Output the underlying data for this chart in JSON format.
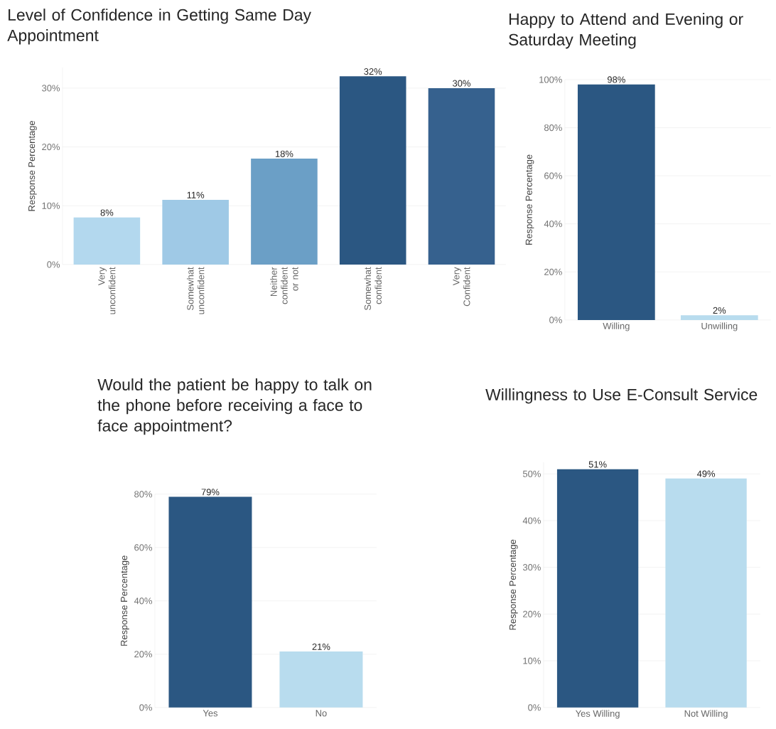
{
  "chart_data": [
    {
      "type": "bar",
      "title": "Level of Confidence in  Getting Same Day Appointment",
      "ylabel": "Response Percentage",
      "categories": [
        "Very unconfident",
        "Somewhat unconfident",
        "Neither confident or not",
        "Somewhat confident",
        "Very Confident"
      ],
      "values": [
        8,
        11,
        18,
        32,
        30
      ],
      "value_labels": [
        "8%",
        "11%",
        "18%",
        "32%",
        "30%"
      ],
      "colors": [
        "#b3d8ee",
        "#9fc9e6",
        "#6b9fc6",
        "#2b5782",
        "#36618e"
      ],
      "ylim": [
        0,
        33.5
      ],
      "yticks": [
        {
          "value": 0,
          "label": "0%"
        },
        {
          "value": 10,
          "label": "10%"
        },
        {
          "value": 20,
          "label": "20%"
        },
        {
          "value": 30,
          "label": "30%"
        }
      ],
      "grid": "y"
    },
    {
      "type": "bar",
      "title": "Happy to Attend and Evening or Saturday Meeting",
      "ylabel": "Response Percentage",
      "categories": [
        "Willing",
        "Unwilling"
      ],
      "values": [
        98,
        2
      ],
      "value_labels": [
        "98%",
        "2%"
      ],
      "colors": [
        "#2b5782",
        "#b8dcee"
      ],
      "ylim": [
        0,
        100
      ],
      "yticks": [
        {
          "value": 0,
          "label": "0%"
        },
        {
          "value": 20,
          "label": "20%"
        },
        {
          "value": 40,
          "label": "40%"
        },
        {
          "value": 60,
          "label": "60%"
        },
        {
          "value": 80,
          "label": "80%"
        },
        {
          "value": 100,
          "label": "100%"
        }
      ],
      "grid": "y"
    },
    {
      "type": "bar",
      "title": "Would the patient be happy to talk on the phone before receiving a face to face appointment?",
      "ylabel": "Response Percentage",
      "categories": [
        "Yes",
        "No"
      ],
      "values": [
        79,
        21
      ],
      "value_labels": [
        "79%",
        "21%"
      ],
      "colors": [
        "#2b5782",
        "#b8dcee"
      ],
      "ylim": [
        0,
        80
      ],
      "yticks": [
        {
          "value": 0,
          "label": "0%"
        },
        {
          "value": 20,
          "label": "20%"
        },
        {
          "value": 40,
          "label": "40%"
        },
        {
          "value": 60,
          "label": "60%"
        },
        {
          "value": 80,
          "label": "80%"
        }
      ],
      "grid": "y"
    },
    {
      "type": "bar",
      "title": "Willingness to Use E-Consult Service",
      "ylabel": "Response Percentage",
      "categories": [
        "Yes Willing",
        "Not Willing"
      ],
      "values": [
        51,
        49
      ],
      "value_labels": [
        "51%",
        "49%"
      ],
      "colors": [
        "#2b5782",
        "#b8dcee"
      ],
      "ylim": [
        0,
        52.5
      ],
      "yticks": [
        {
          "value": 0,
          "label": "0%"
        },
        {
          "value": 10,
          "label": "10%"
        },
        {
          "value": 20,
          "label": "20%"
        },
        {
          "value": 30,
          "label": "30%"
        },
        {
          "value": 40,
          "label": "40%"
        },
        {
          "value": 50,
          "label": "50%"
        }
      ],
      "grid": "y"
    }
  ]
}
